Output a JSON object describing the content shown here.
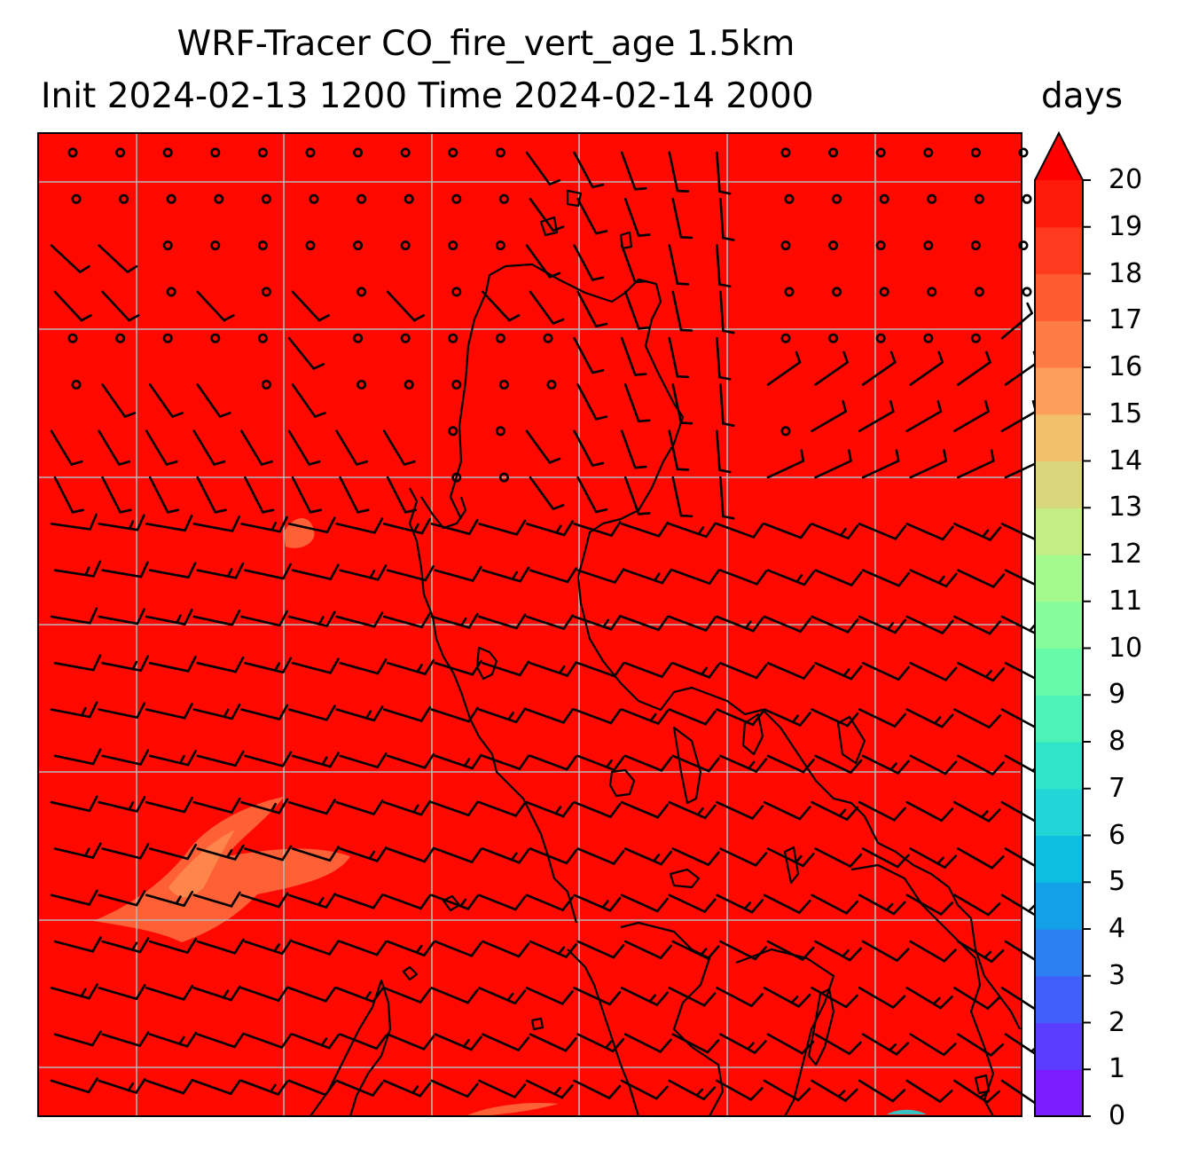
{
  "title_line1": "WRF-Tracer CO_fire_vert_age 1.5km",
  "title_line2": "Init 2024-02-13 1200 Time 2024-02-14 2000",
  "units": "days",
  "colorbar": {
    "min": 0,
    "max": 20,
    "extend": "max",
    "ticks": [
      "0",
      "1",
      "2",
      "3",
      "4",
      "5",
      "6",
      "7",
      "8",
      "9",
      "10",
      "11",
      "12",
      "13",
      "14",
      "15",
      "16",
      "17",
      "18",
      "19",
      "20"
    ],
    "colors": [
      "#7a1dff",
      "#5a3dfd",
      "#4060f9",
      "#2c80f2",
      "#12a0e8",
      "#0cbfe0",
      "#22d6d8",
      "#2ee5c9",
      "#4cf2b8",
      "#66faa9",
      "#86fd9a",
      "#a4fa8c",
      "#c4ed85",
      "#d9d67d",
      "#f1c06a",
      "#fd9f5a",
      "#ff7d45",
      "#ff5c32",
      "#ff3a1e",
      "#ff1b0c"
    ],
    "extend_color": "#ff0000"
  },
  "map": {
    "field_color": "#ff0800",
    "plume_colors": [
      "#ff6a3c",
      "#ff8a4c"
    ],
    "gridline_color": "#b8b8b8",
    "coastline_color": "#000000",
    "barb_color": "#000000"
  }
}
